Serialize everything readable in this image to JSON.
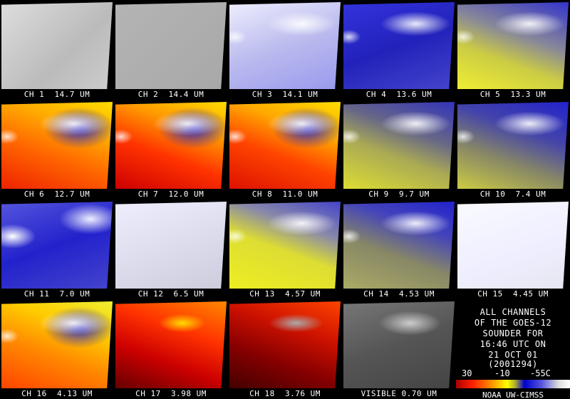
{
  "panels": [
    {
      "label": "CH 1  14.7 UM"
    },
    {
      "label": "CH 2  14.4 UM"
    },
    {
      "label": "CH 3  14.1 UM"
    },
    {
      "label": "CH 4  13.6 UM"
    },
    {
      "label": "CH 5  13.3 UM"
    },
    {
      "label": "CH 6  12.7 UM"
    },
    {
      "label": "CH 7  12.0 UM"
    },
    {
      "label": "CH 8  11.0 UM"
    },
    {
      "label": "CH 9  9.7 UM"
    },
    {
      "label": "CH 10  7.4 UM"
    },
    {
      "label": "CH 11  7.0 UM"
    },
    {
      "label": "CH 12  6.5 UM"
    },
    {
      "label": "CH 13  4.57 UM"
    },
    {
      "label": "CH 14  4.53 UM"
    },
    {
      "label": "CH 15  4.45 UM"
    },
    {
      "label": "CH 16  4.13 UM"
    },
    {
      "label": "CH 17  3.98 UM"
    },
    {
      "label": "CH 18  3.76 UM"
    },
    {
      "label": "VISIBLE 0.70 UM"
    }
  ],
  "info": {
    "lines": [
      "ALL CHANNELS",
      "OF THE GOES-12",
      "SOUNDER FOR",
      "16:46 UTC ON",
      "21 OCT 01",
      "(2001294)"
    ]
  },
  "colorbar": {
    "labels": [
      "30",
      "-10",
      "-55C"
    ]
  },
  "credit": "NOAA UW-CIMSS"
}
